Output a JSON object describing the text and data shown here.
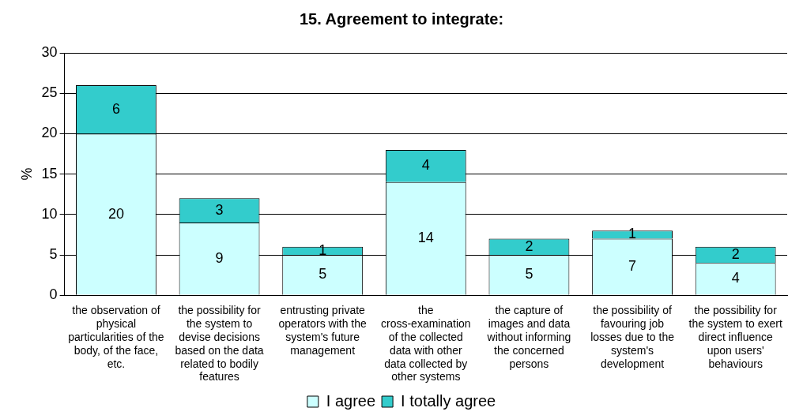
{
  "chart_data": {
    "type": "bar",
    "title": "15. Agreement to integrate:",
    "ylabel": "%",
    "categories": [
      "the observation of physical particularities of the body, of the face, etc.",
      "the possibility for the system to devise decisions based on the data related to bodily features",
      "entrusting private operators with the system's future management",
      "the cross-examination of the collected data with other data collected by other systems",
      "the capture of images and data without informing the concerned persons",
      "the possibility of favouring job losses due to the system's development",
      "the possibility for the system to exert direct influence upon users' behaviours"
    ],
    "series": [
      {
        "name": "I agree",
        "color": "#ccffff",
        "values": [
          20,
          9,
          5,
          14,
          5,
          7,
          4
        ]
      },
      {
        "name": "I totally agree",
        "color": "#33cccc",
        "values": [
          6,
          3,
          1,
          4,
          2,
          1,
          2
        ]
      }
    ],
    "stacked": true,
    "ylim": [
      0,
      30
    ],
    "yticks": [
      0,
      5,
      10,
      15,
      20,
      25,
      30
    ],
    "grid": "y",
    "legend": "bottom",
    "data_labels": true
  }
}
